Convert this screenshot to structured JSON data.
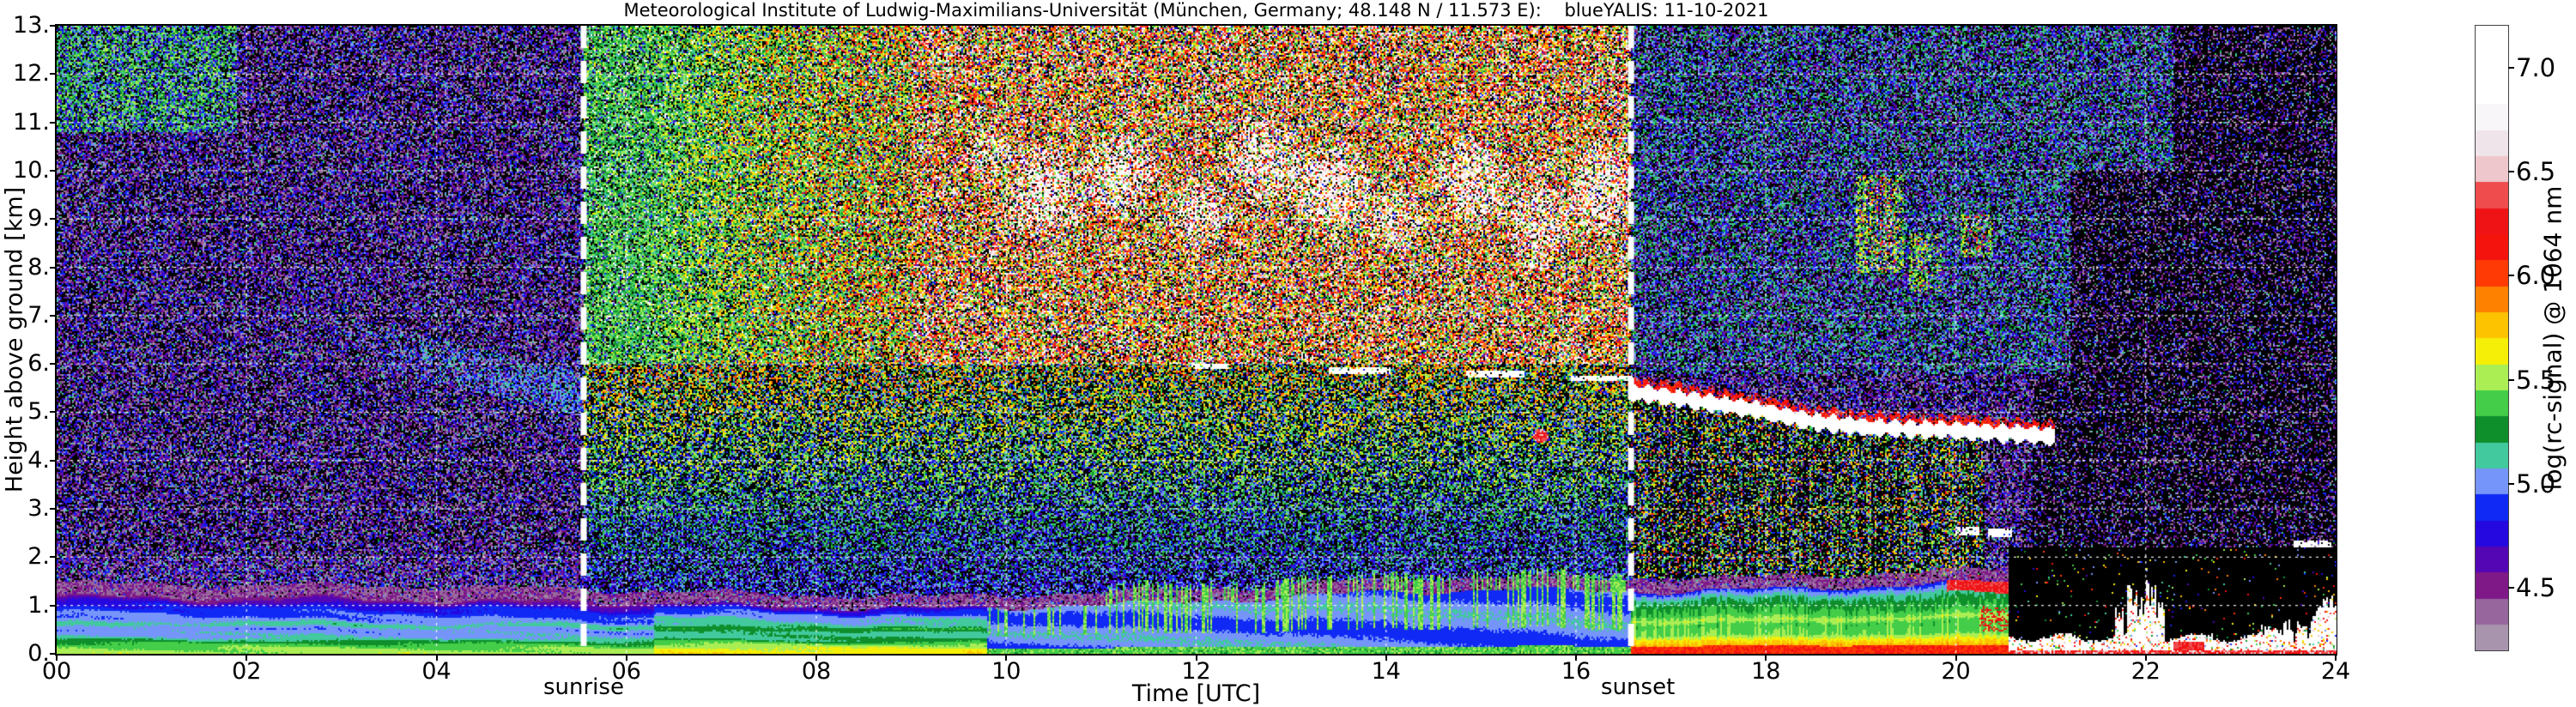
{
  "chart_data": {
    "type": "heatmap",
    "title": "Meteorological Institute of Ludwig-Maximilians-Universität (München, Germany; 48.148 N / 11.573 E):    blueYALIS: 11-10-2021",
    "xlabel": "Time [UTC]",
    "ylabel": "Height above ground [km]",
    "colorbar_label": "log(rc-signal) @ 1064 nm",
    "xlim": [
      0,
      24
    ],
    "ylim": [
      0,
      13
    ],
    "clim": [
      4.2,
      7.2
    ],
    "x_ticks": [
      [
        "00",
        0
      ],
      [
        "02",
        2
      ],
      [
        "04",
        4
      ],
      [
        "06",
        6
      ],
      [
        "08",
        8
      ],
      [
        "10",
        10
      ],
      [
        "12",
        12
      ],
      [
        "14",
        14
      ],
      [
        "16",
        16
      ],
      [
        "18",
        18
      ],
      [
        "20",
        20
      ],
      [
        "22",
        22
      ],
      [
        "24",
        24
      ]
    ],
    "y_ticks": [
      [
        "0.",
        0
      ],
      [
        "1.",
        1
      ],
      [
        "2.",
        2
      ],
      [
        "3.",
        3
      ],
      [
        "4.",
        4
      ],
      [
        "5.",
        5
      ],
      [
        "6.",
        6
      ],
      [
        "7.",
        7
      ],
      [
        "8.",
        8
      ],
      [
        "9.",
        9
      ],
      [
        "10.",
        10
      ],
      [
        "11.",
        11
      ],
      [
        "12.",
        12
      ],
      [
        "13.",
        13
      ]
    ],
    "colorbar_ticks": [
      [
        "4.5",
        4.5
      ],
      [
        "5.0",
        5.0
      ],
      [
        "5.5",
        5.5
      ],
      [
        "6.0",
        6.0
      ],
      [
        "6.5",
        6.5
      ],
      [
        "7.0",
        7.0
      ]
    ],
    "colorbar_steps": 24,
    "grid": true,
    "annotations": {
      "sunrise": {
        "label": "sunrise",
        "time_utc": 5.55,
        "style": "white-dashed-vertical"
      },
      "sunset": {
        "label": "sunset",
        "time_utc": 16.58,
        "style": "white-dashed-vertical"
      }
    },
    "colormap": [
      [
        4.2,
        "#b2a6b6"
      ],
      [
        4.32,
        "#a085a5"
      ],
      [
        4.44,
        "#8f4e96"
      ],
      [
        4.53,
        "#7c0d85"
      ],
      [
        4.63,
        "#5807b2"
      ],
      [
        4.74,
        "#2b06dc"
      ],
      [
        4.85,
        "#0a14ee"
      ],
      [
        4.93,
        "#1b42ff"
      ],
      [
        5.0,
        "#6c8cfa"
      ],
      [
        5.07,
        "#a2c2fd"
      ],
      [
        5.13,
        "#49d0a8"
      ],
      [
        5.19,
        "#129a60"
      ],
      [
        5.25,
        "#0d8a2a"
      ],
      [
        5.33,
        "#1fae38"
      ],
      [
        5.41,
        "#52da50"
      ],
      [
        5.49,
        "#98ee62"
      ],
      [
        5.57,
        "#d9ee32"
      ],
      [
        5.65,
        "#fbf000"
      ],
      [
        5.75,
        "#fdc900"
      ],
      [
        5.85,
        "#fe9800"
      ],
      [
        5.95,
        "#ff5f00"
      ],
      [
        6.05,
        "#ff2408"
      ],
      [
        6.17,
        "#f20d10"
      ],
      [
        6.35,
        "#ee1a1a"
      ],
      [
        6.47,
        "#f2bcc0"
      ],
      [
        6.59,
        "#e9dce3"
      ],
      [
        6.73,
        "#f8f4f7"
      ],
      [
        6.86,
        "#ffffff"
      ],
      [
        7.2,
        "#ffffff"
      ]
    ],
    "features": [
      "Layered planetary boundary layer aerosol below ~1.5 km all day",
      "Faint descending aerosol layer 5-7 km between ~02:30 and 05:30 UTC",
      "Strong solar background noise between sunrise (05:33) and sunset (16:35)",
      "Cirrus patches 8.5-11 km between ~09:30 and 16:30 UTC",
      "Thin cloud streaks near 5.7-6.0 km between 12:00 and 16:30 UTC",
      "Opaque cloud band descending from ~5.4 km to ~4.6 km, 16:40-21:00 UTC",
      "Virga/aerosol streaks 1.5-4.5 km below evening cloud until ~20:15 UTC",
      "Elevated cloud fragments 7.5-10 km, 19:00-20:30 UTC",
      "Full attenuation (black) below ~2.2 km after ~20:35 UTC with bright fog/rain layer at ground"
    ],
    "render": {
      "seed": 20211011,
      "black_zone_start": 20.55,
      "bl": {
        "height_points": [
          [
            0,
            1.2
          ],
          [
            3,
            1.15
          ],
          [
            5.5,
            1.08
          ],
          [
            7,
            1.0
          ],
          [
            9,
            0.92
          ],
          [
            11,
            1.0
          ],
          [
            12.5,
            1.12
          ],
          [
            14,
            1.28
          ],
          [
            15.5,
            1.33
          ],
          [
            16.58,
            1.28
          ],
          [
            18,
            1.33
          ],
          [
            19.5,
            1.42
          ],
          [
            20.55,
            1.5
          ]
        ],
        "profile": [
          [
            0,
            5.52
          ],
          [
            0.1,
            5.45
          ],
          [
            0.2,
            5.3
          ],
          [
            0.3,
            5.05
          ],
          [
            0.45,
            5.0
          ],
          [
            0.52,
            5.15
          ],
          [
            0.6,
            5.0
          ],
          [
            0.72,
            4.92
          ],
          [
            0.85,
            4.8
          ],
          [
            0.95,
            4.6
          ],
          [
            1,
            4.45
          ]
        ]
      },
      "cloud_path": [
        [
          16.65,
          5.4
        ],
        [
          17.2,
          5.25
        ],
        [
          17.9,
          5.05
        ],
        [
          18.5,
          4.8
        ],
        [
          19.1,
          4.68
        ],
        [
          20.0,
          4.62
        ],
        [
          20.6,
          4.55
        ],
        [
          21.05,
          4.5
        ]
      ],
      "day_streaks": [
        [
          11.95,
          12.35,
          5.95
        ],
        [
          13.4,
          14.05,
          5.85
        ],
        [
          14.85,
          15.45,
          5.8
        ],
        [
          15.95,
          16.6,
          5.7
        ]
      ],
      "cirrus": [
        [
          10.4,
          9.6,
          0.5,
          1.1,
          0.5
        ],
        [
          11.2,
          9.9,
          0.45,
          1.0,
          0.55
        ],
        [
          12.0,
          9.1,
          0.4,
          0.9,
          0.45
        ],
        [
          12.7,
          10.2,
          0.5,
          1.0,
          0.5
        ],
        [
          13.4,
          9.6,
          0.5,
          1.1,
          0.6
        ],
        [
          14.1,
          9.0,
          0.4,
          0.8,
          0.45
        ],
        [
          14.9,
          9.8,
          0.5,
          1.0,
          0.55
        ],
        [
          15.6,
          8.9,
          0.4,
          1.0,
          0.5
        ],
        [
          16.25,
          9.6,
          0.4,
          1.1,
          0.55
        ],
        [
          9.8,
          10.4,
          0.3,
          0.6,
          0.35
        ]
      ],
      "evening_clusters": [
        [
          18.95,
          19.45,
          7.9,
          9.9,
          0.6,
          0.55
        ],
        [
          19.5,
          19.85,
          7.5,
          8.7,
          0.5,
          0.25
        ],
        [
          20.05,
          20.4,
          8.2,
          9.1,
          0.55,
          0.5
        ]
      ],
      "red_blob": [
        19.82,
        4.15,
        0.17,
        0.4
      ],
      "red_dot": [
        15.63,
        4.5,
        0.08,
        0.14
      ],
      "dawn_haze": [
        [
          2.6,
          6.7
        ],
        [
          5.55,
          5.35
        ],
        0.55
      ],
      "cloud_dashes": [
        [
          20.0,
          20.25,
          2.55
        ],
        [
          20.33,
          20.6,
          2.5
        ],
        [
          23.55,
          23.95,
          2.25
        ]
      ],
      "ground_spikes": [
        [
          21.72,
          1.0
        ],
        [
          21.86,
          1.5
        ],
        [
          21.96,
          1.3
        ],
        [
          22.06,
          1.55
        ],
        [
          22.16,
          1.15
        ],
        [
          22.5,
          0.5
        ],
        [
          22.65,
          0.45
        ],
        [
          23.3,
          0.6
        ],
        [
          23.5,
          0.75
        ],
        [
          23.65,
          0.7
        ],
        [
          23.78,
          1.0
        ],
        [
          23.88,
          1.25
        ],
        [
          23.97,
          1.45
        ]
      ],
      "greenish_topleft": [
        1.9,
        10.8
      ]
    }
  }
}
